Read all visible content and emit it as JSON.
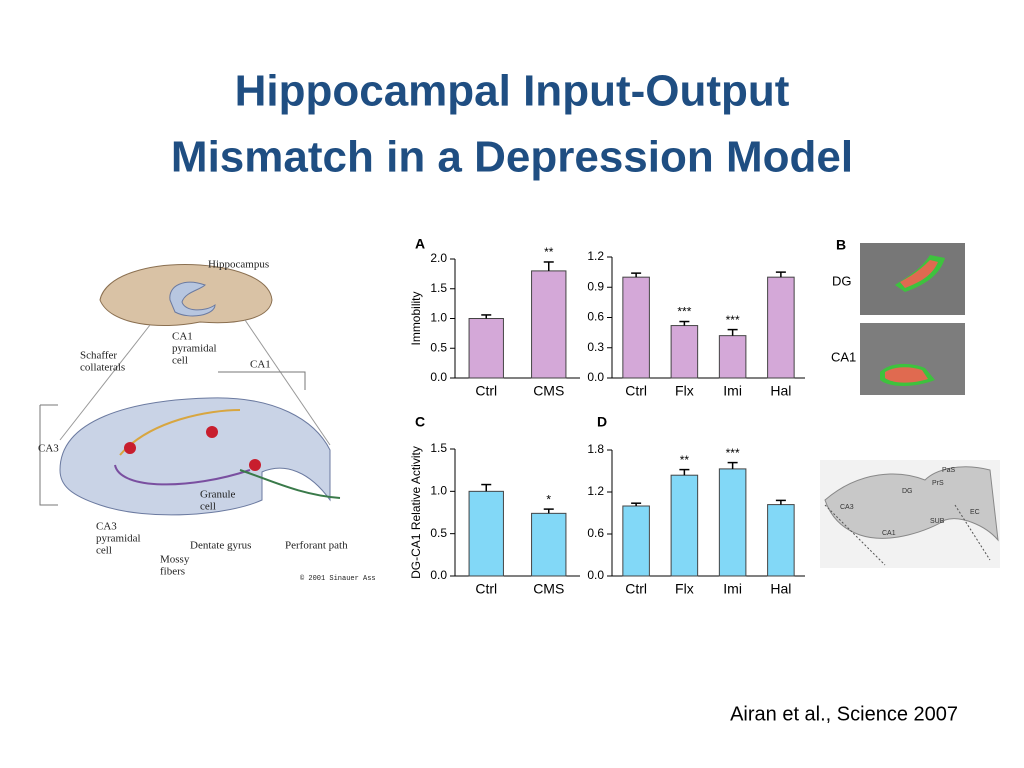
{
  "slide": {
    "title_lines": [
      "Hippocampal Input-Output",
      "Mismatch in a Depression Model"
    ],
    "citation": "Airan et al., Science 2007"
  },
  "diagram": {
    "labels": [
      [
        "Hippocampus"
      ],
      [
        "CA1",
        "pyramidal",
        "cell"
      ],
      [
        "Schaffer",
        "collaterals"
      ],
      [
        "CA1"
      ],
      [
        "CA3"
      ],
      [
        "Granule",
        "cell"
      ],
      [
        "CA3",
        "pyramidal",
        "cell"
      ],
      [
        "Mossy",
        "fibers"
      ],
      [
        "Dentate gyrus"
      ],
      [
        "Perforant path"
      ],
      [
        "© 2001 Sinauer Ass"
      ]
    ]
  },
  "images": {
    "panel": "B",
    "labels": [
      "DG",
      "CA1"
    ],
    "slice_labels": [
      "PaS",
      "PrS",
      "DG",
      "CA3",
      "CA1",
      "SUB",
      "EC"
    ]
  },
  "chart_data": [
    {
      "type": "bar",
      "panel": "A",
      "ylabel": "Immobility",
      "categories": [
        "Ctrl",
        "CMS"
      ],
      "values": [
        1.0,
        1.8
      ],
      "errors": [
        0.06,
        0.15
      ],
      "annotations": [
        null,
        "**"
      ],
      "color": "#d4a8d8",
      "ylim": [
        0,
        2.0
      ],
      "yticks": [
        {
          "value": 0,
          "label": "0.0"
        },
        {
          "value": 0.5,
          "label": "0.5"
        },
        {
          "value": 1,
          "label": "1.0"
        },
        {
          "value": 1.5,
          "label": "1.5"
        },
        {
          "value": 2,
          "label": "2.0"
        }
      ]
    },
    {
      "type": "bar",
      "categories": [
        "Ctrl",
        "Flx",
        "Imi",
        "Hal"
      ],
      "values": [
        1.0,
        0.52,
        0.42,
        1.0
      ],
      "errors": [
        0.04,
        0.04,
        0.06,
        0.05
      ],
      "annotations": [
        null,
        "***",
        "***",
        null
      ],
      "color": "#d4a8d8",
      "ylim": [
        0,
        1.2
      ],
      "yticks": [
        {
          "value": 0,
          "label": "0.0"
        },
        0.3,
        0.6,
        0.9,
        1.2
      ]
    },
    {
      "type": "bar",
      "panel": "C",
      "ylabel": "DG-CA1 Relative Activity",
      "categories": [
        "Ctrl",
        "CMS"
      ],
      "values": [
        1.0,
        0.74
      ],
      "errors": [
        0.08,
        0.05
      ],
      "annotations": [
        null,
        "*"
      ],
      "color": "#82d8f7",
      "ylim": [
        0,
        1.5
      ],
      "yticks": [
        {
          "value": 0,
          "label": "0.0"
        },
        0.5,
        {
          "value": 1,
          "label": "1.0"
        },
        1.5
      ]
    },
    {
      "type": "bar",
      "panel": "D",
      "categories": [
        "Ctrl",
        "Flx",
        "Imi",
        "Hal"
      ],
      "values": [
        1.0,
        1.44,
        1.53,
        1.02
      ],
      "errors": [
        0.04,
        0.08,
        0.09,
        0.06
      ],
      "annotations": [
        null,
        "**",
        "***",
        null
      ],
      "color": "#82d8f7",
      "ylim": [
        0,
        1.8
      ],
      "yticks": [
        {
          "value": 0,
          "label": "0.0"
        },
        0.6,
        1.2,
        1.8
      ]
    }
  ]
}
